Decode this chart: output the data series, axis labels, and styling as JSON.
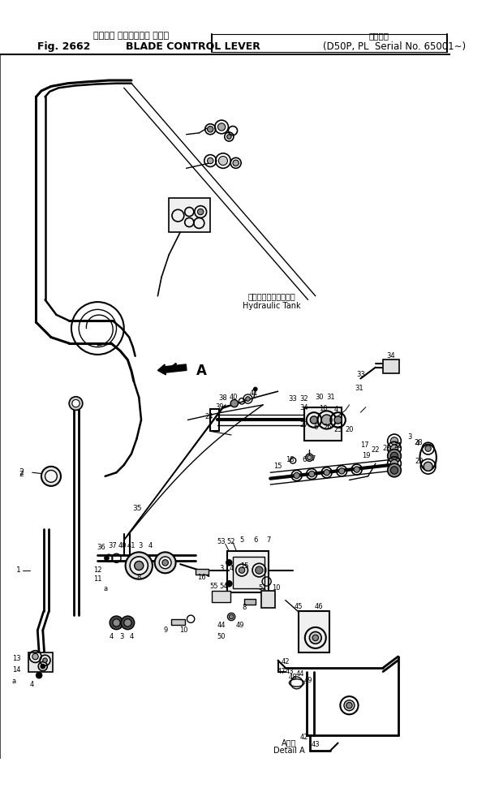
{
  "title_jp": "ブレード コントロール レバー",
  "title_en": "BLADE CONTROL LEVER",
  "fig_num": "Fig. 2662",
  "serial_jp": "適用号等",
  "serial_en": "D50P, PL  Serial No. 65001∼",
  "hydraulic_jp": "ハイドロリックタンク",
  "hydraulic_en": "Hydraulic Tank",
  "detail_jp": "A詳細",
  "detail_en": "Detail A",
  "bg": "#ffffff",
  "lc": "#000000"
}
